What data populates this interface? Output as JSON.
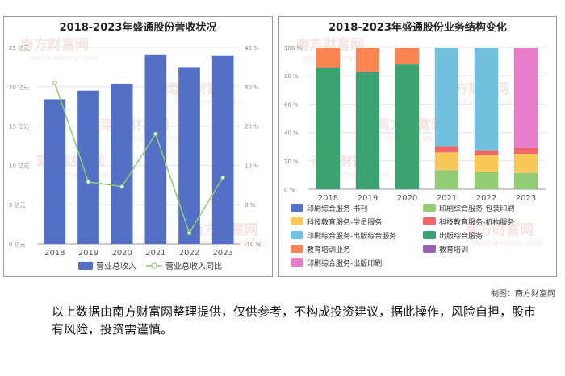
{
  "credit": "制图：南方财富网",
  "disclaimer": "以上数据由南方财富网整理提供，仅供参考，不构成投资建议，据此操作，风险自担，股市有风险，投资需谨慎。",
  "watermark": {
    "cn": "南方财富网",
    "en": "southmoney.com"
  },
  "chart_data": [
    {
      "type": "bar",
      "title": "2018-2023年盛通股份营收状况",
      "categories": [
        "2018",
        "2019",
        "2020",
        "2021",
        "2022",
        "2023"
      ],
      "y_left": {
        "ticks": [
          "0 亿元",
          "5 亿元",
          "10 亿元",
          "15 亿元",
          "20 亿元",
          "25 亿元"
        ],
        "ylim": [
          0,
          25
        ]
      },
      "y_right": {
        "ticks": [
          "-10 %",
          "0 %",
          "10 %",
          "20 %",
          "30 %",
          "40 %"
        ],
        "ylim": [
          -10,
          40
        ]
      },
      "series": [
        {
          "name": "营业总收入",
          "kind": "bar",
          "axis": "left",
          "color": "#5470c6",
          "values": [
            18.4,
            19.5,
            20.4,
            24.1,
            22.5,
            24.0
          ]
        },
        {
          "name": "营业总收入同比",
          "kind": "line",
          "axis": "right",
          "color": "#91cc75",
          "values": [
            31.0,
            5.8,
            4.6,
            18.0,
            -7.2,
            6.9
          ]
        }
      ],
      "legend": "bottom"
    },
    {
      "type": "bar",
      "stacked": true,
      "title": "2018-2023年盛通股份业务结构变化",
      "categories": [
        "2018",
        "2019",
        "2020",
        "2021",
        "2022",
        "2023"
      ],
      "y_ticks": [
        "0 %",
        "20 %",
        "40 %",
        "60 %",
        "80 %",
        "100 %"
      ],
      "ylim": [
        0,
        100
      ],
      "series": [
        {
          "name": "印刷综合服务-书刊",
          "color": "#5470c6",
          "values": [
            0,
            0,
            0,
            0,
            0,
            0
          ]
        },
        {
          "name": "印刷综合服务-包装印刷",
          "color": "#91cc75",
          "values": [
            0,
            0,
            0,
            13.5,
            12,
            11.5
          ]
        },
        {
          "name": "科技教育服务-学员服务",
          "color": "#fac858",
          "values": [
            0,
            0,
            0,
            12.5,
            12,
            13.5
          ]
        },
        {
          "name": "科技教育服务-机构服务",
          "color": "#ee6666",
          "values": [
            0,
            0,
            0,
            4.5,
            3.5,
            4
          ]
        },
        {
          "name": "印刷综合服务-出版综合服务",
          "color": "#73c0de",
          "values": [
            0,
            0,
            0,
            69.5,
            72.5,
            0
          ]
        },
        {
          "name": "出版综合服务",
          "color": "#3ba272",
          "values": [
            86,
            83,
            88,
            0,
            0,
            0
          ]
        },
        {
          "name": "教育培训业务",
          "color": "#fc8452",
          "values": [
            14,
            17,
            12,
            0,
            0,
            0
          ]
        },
        {
          "name": "教育培训",
          "color": "#9a60b4",
          "values": [
            0,
            0,
            0,
            0,
            0,
            0
          ]
        },
        {
          "name": "印刷综合服务-出版印刷",
          "color": "#ea7ccc",
          "values": [
            0,
            0,
            0,
            0,
            0,
            71
          ]
        }
      ],
      "legend": "bottom"
    }
  ]
}
